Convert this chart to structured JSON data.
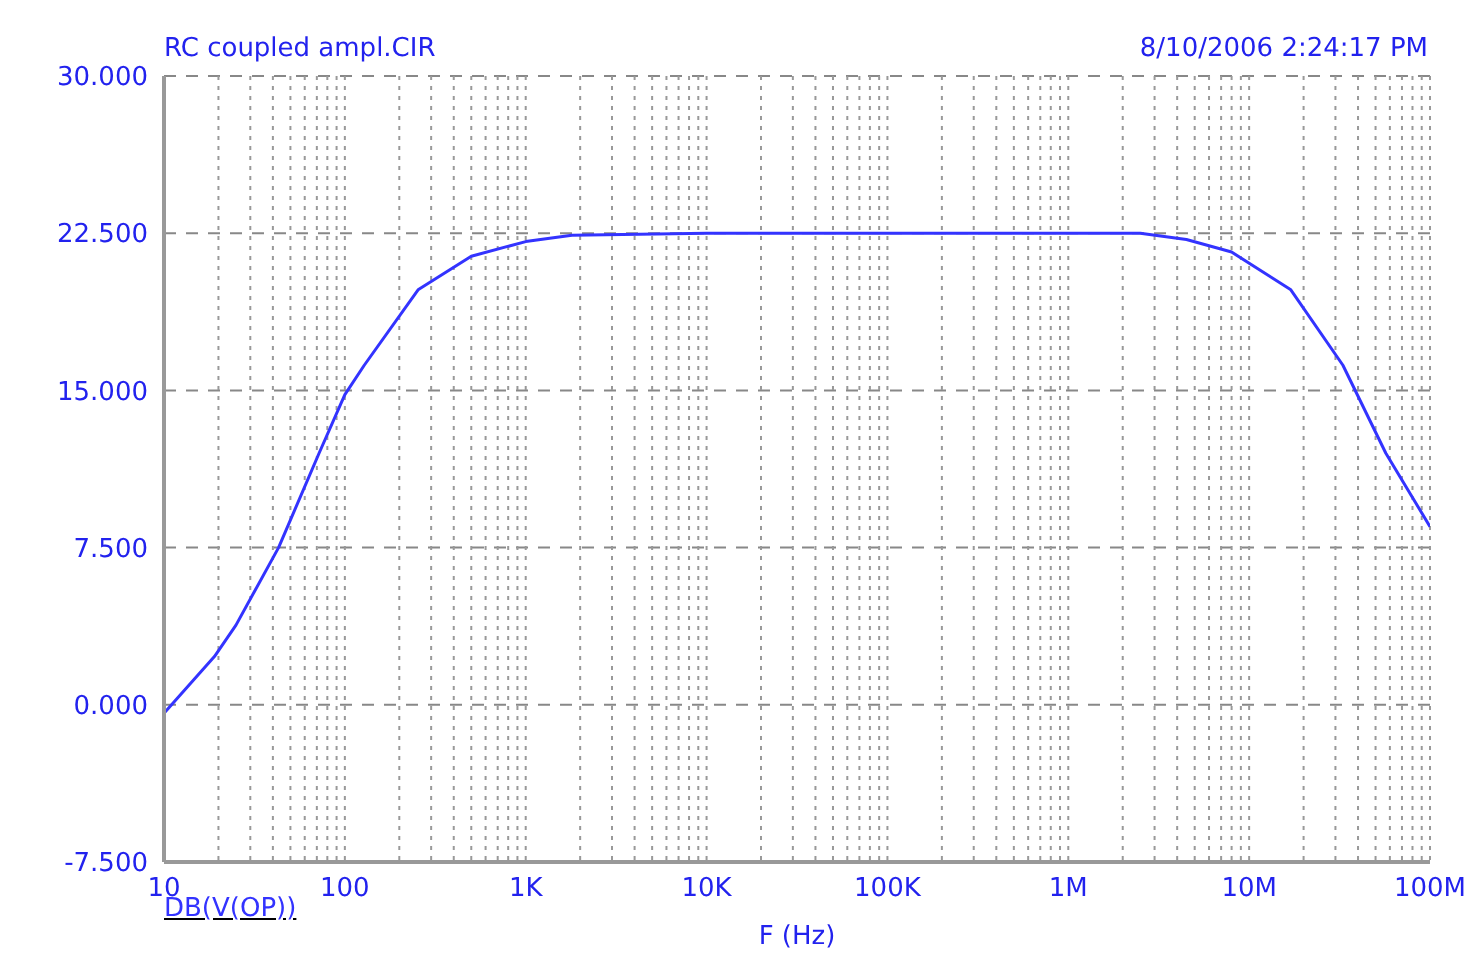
{
  "chart_data": {
    "type": "line",
    "annotations": [
      "RC coupled ampl.CIR",
      "8/10/2006 2:24:17 PM"
    ],
    "xlabel": "F (Hz)",
    "legend": "bottom left",
    "log": "x",
    "grid": true,
    "marker": "none",
    "line_style": "solid",
    "xlim": [
      10,
      100000000
    ],
    "xticks": [
      {
        "value": 10,
        "label": "10"
      },
      {
        "value": 20,
        "label": null
      },
      {
        "value": 30,
        "label": null
      },
      {
        "value": 40,
        "label": null
      },
      {
        "value": 50,
        "label": null
      },
      {
        "value": 60,
        "label": null
      },
      {
        "value": 70,
        "label": null
      },
      {
        "value": 80,
        "label": null
      },
      {
        "value": 90,
        "label": null
      },
      {
        "value": 100,
        "label": "100"
      },
      {
        "value": 200,
        "label": null
      },
      {
        "value": 300,
        "label": null
      },
      {
        "value": 400,
        "label": null
      },
      {
        "value": 500,
        "label": null
      },
      {
        "value": 600,
        "label": null
      },
      {
        "value": 700,
        "label": null
      },
      {
        "value": 800,
        "label": null
      },
      {
        "value": 900,
        "label": null
      },
      {
        "value": 1000,
        "label": "1K"
      },
      {
        "value": 2000,
        "label": null
      },
      {
        "value": 3000,
        "label": null
      },
      {
        "value": 4000,
        "label": null
      },
      {
        "value": 5000,
        "label": null
      },
      {
        "value": 6000,
        "label": null
      },
      {
        "value": 7000,
        "label": null
      },
      {
        "value": 8000,
        "label": null
      },
      {
        "value": 9000,
        "label": null
      },
      {
        "value": 10000,
        "label": "10K"
      },
      {
        "value": 20000,
        "label": null
      },
      {
        "value": 30000,
        "label": null
      },
      {
        "value": 40000,
        "label": null
      },
      {
        "value": 50000,
        "label": null
      },
      {
        "value": 60000,
        "label": null
      },
      {
        "value": 70000,
        "label": null
      },
      {
        "value": 80000,
        "label": null
      },
      {
        "value": 90000,
        "label": null
      },
      {
        "value": 100000,
        "label": "100K"
      },
      {
        "value": 200000,
        "label": null
      },
      {
        "value": 300000,
        "label": null
      },
      {
        "value": 400000,
        "label": null
      },
      {
        "value": 500000,
        "label": null
      },
      {
        "value": 600000,
        "label": null
      },
      {
        "value": 700000,
        "label": null
      },
      {
        "value": 800000,
        "label": null
      },
      {
        "value": 900000,
        "label": null
      },
      {
        "value": 1000000,
        "label": "1M"
      },
      {
        "value": 2000000,
        "label": null
      },
      {
        "value": 3000000,
        "label": null
      },
      {
        "value": 4000000,
        "label": null
      },
      {
        "value": 5000000,
        "label": null
      },
      {
        "value": 6000000,
        "label": null
      },
      {
        "value": 7000000,
        "label": null
      },
      {
        "value": 8000000,
        "label": null
      },
      {
        "value": 9000000,
        "label": null
      },
      {
        "value": 10000000,
        "label": "10M"
      },
      {
        "value": 20000000,
        "label": null
      },
      {
        "value": 30000000,
        "label": null
      },
      {
        "value": 40000000,
        "label": null
      },
      {
        "value": 50000000,
        "label": null
      },
      {
        "value": 60000000,
        "label": null
      },
      {
        "value": 70000000,
        "label": null
      },
      {
        "value": 80000000,
        "label": null
      },
      {
        "value": 90000000,
        "label": null
      },
      {
        "value": 100000000,
        "label": "100M"
      }
    ],
    "ylim": [
      -7.5,
      30
    ],
    "yticks": [
      {
        "value": -7.5,
        "label": "-7.500"
      },
      {
        "value": 0,
        "label": "0.000"
      },
      {
        "value": 7.5,
        "label": "7.500"
      },
      {
        "value": 15,
        "label": "15.000"
      },
      {
        "value": 22.5,
        "label": "22.500"
      },
      {
        "value": 30,
        "label": "30.000"
      }
    ],
    "x": [
      10,
      19,
      25,
      43,
      72,
      100,
      128,
      254,
      500,
      1000,
      1800,
      10000,
      100000,
      1000000,
      2500000,
      4500000,
      8000000,
      17000000,
      33000000,
      57000000,
      100000000
    ],
    "series": [
      {
        "name": "DB(V(OP))",
        "color": "#3333ff",
        "values": [
          -0.4,
          2.3,
          3.8,
          7.5,
          12.0,
          14.8,
          16.2,
          19.8,
          21.4,
          22.1,
          22.4,
          22.5,
          22.5,
          22.5,
          22.5,
          22.2,
          21.6,
          19.8,
          16.2,
          12.0,
          8.5
        ]
      }
    ]
  }
}
